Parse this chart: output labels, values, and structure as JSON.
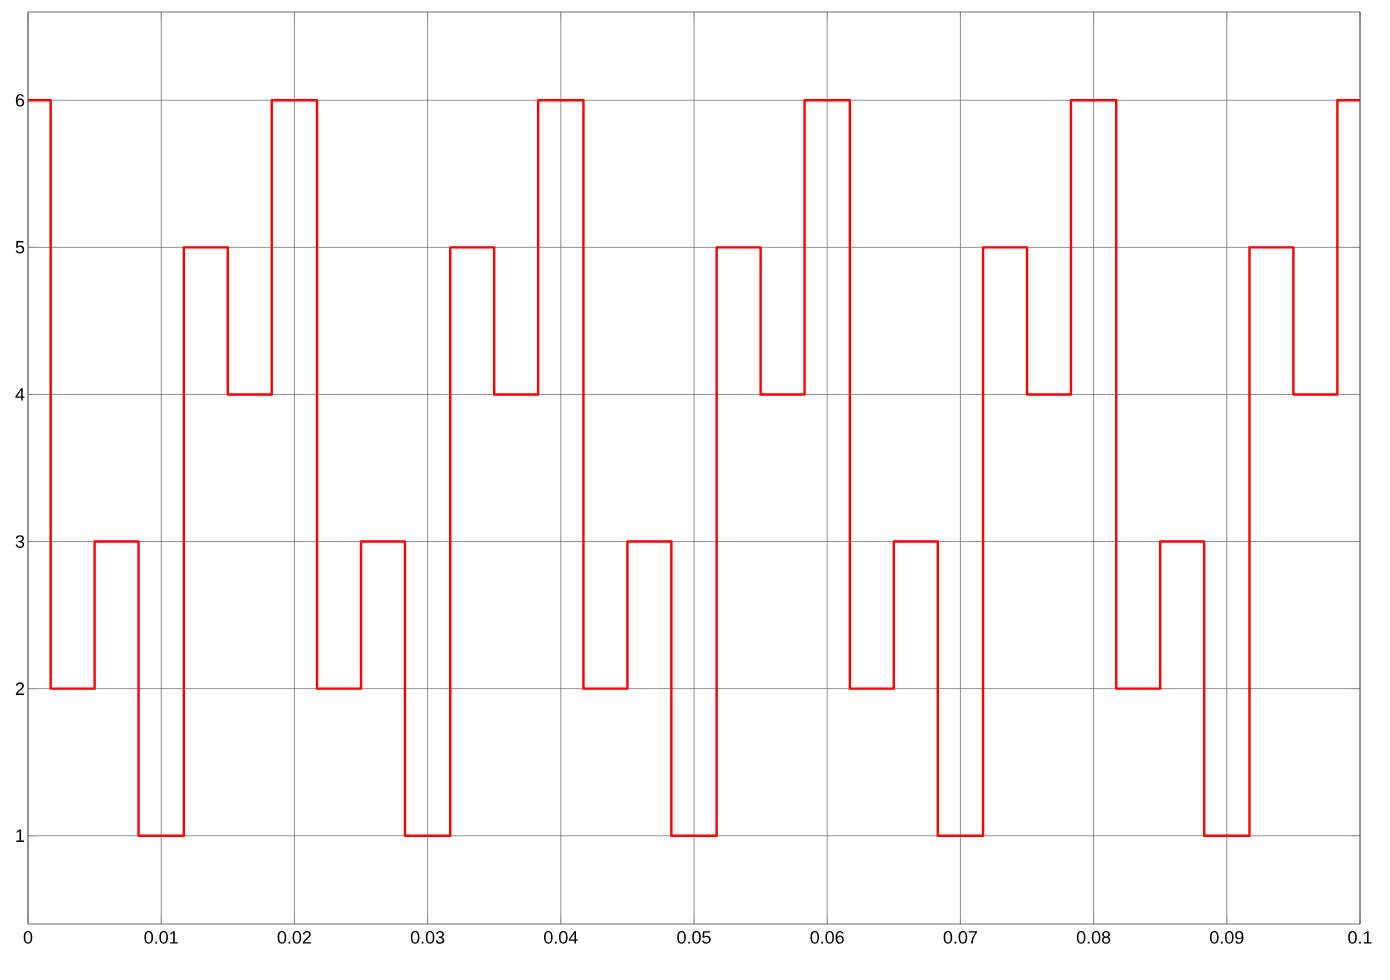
{
  "chart_data": {
    "type": "step",
    "x": [
      0,
      0.0017,
      0.005,
      0.0083,
      0.0117,
      0.015,
      0.0183,
      0.0217,
      0.025,
      0.0283,
      0.0317,
      0.035,
      0.0383,
      0.0417,
      0.045,
      0.0483,
      0.0517,
      0.055,
      0.0583,
      0.0617,
      0.065,
      0.0683,
      0.0717,
      0.075,
      0.0783,
      0.0817,
      0.085,
      0.0883,
      0.0917,
      0.095,
      0.0983,
      0.1
    ],
    "series": [
      {
        "color": "#ff0000",
        "values": [
          6,
          2,
          3,
          1,
          5,
          4,
          6,
          2,
          3,
          1,
          5,
          4,
          6,
          2,
          3,
          1,
          5,
          4,
          6,
          2,
          3,
          1,
          5,
          4,
          6,
          2,
          3,
          1,
          5,
          4,
          6,
          6
        ]
      }
    ],
    "xlim": [
      0,
      0.1
    ],
    "ylim": [
      0.4,
      6.6
    ],
    "xticks": [
      0,
      0.01,
      0.02,
      0.03,
      0.04,
      0.05,
      0.06,
      0.07,
      0.08,
      0.09,
      0.1
    ],
    "yticks": [
      1,
      2,
      3,
      4,
      5,
      6
    ],
    "grid": true,
    "marker": "none",
    "line_style": "solid"
  }
}
